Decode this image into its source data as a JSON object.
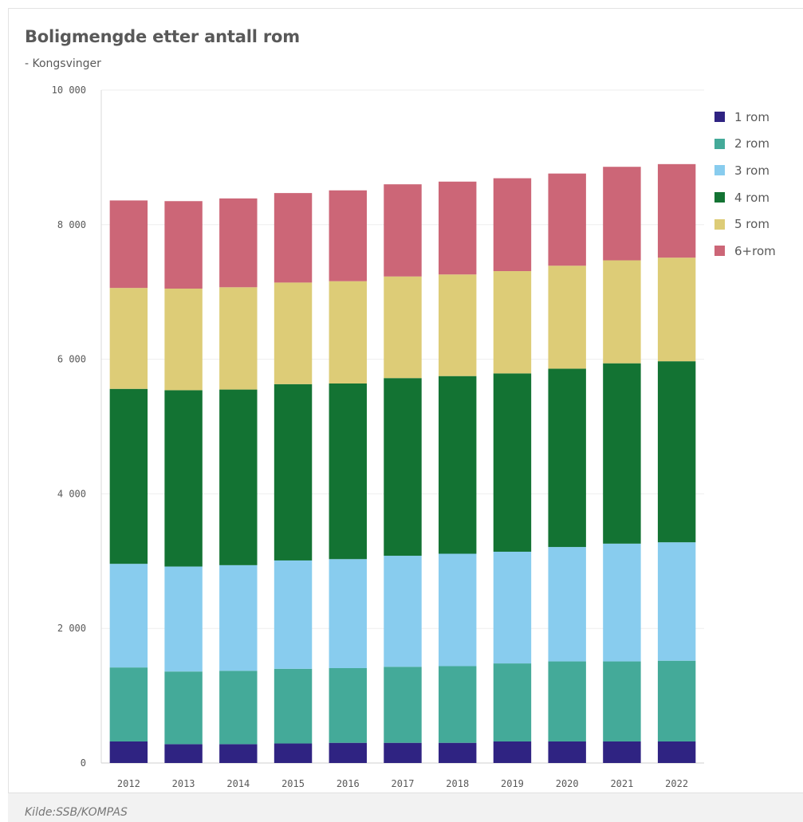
{
  "title": "Boligmengde etter antall rom",
  "subtitle": "- Kongsvinger",
  "footer": "Kilde:SSB/KOMPAS",
  "chart_data": {
    "type": "bar",
    "stacked": true,
    "categories": [
      "2012",
      "2013",
      "2014",
      "2015",
      "2016",
      "2017",
      "2018",
      "2019",
      "2020",
      "2021",
      "2022"
    ],
    "ylim": [
      0,
      10000
    ],
    "yticks": [
      0,
      2000,
      4000,
      6000,
      8000,
      10000
    ],
    "ytick_labels": [
      "0",
      "2 000",
      "4 000",
      "6 000",
      "8 000",
      "10 000"
    ],
    "legend_position": "right",
    "series": [
      {
        "name": "1 rom",
        "color": "#2f2382",
        "values": [
          320,
          280,
          280,
          290,
          300,
          300,
          300,
          320,
          320,
          320,
          320
        ]
      },
      {
        "name": "2 rom",
        "color": "#44aa99",
        "values": [
          1100,
          1080,
          1090,
          1110,
          1110,
          1130,
          1140,
          1160,
          1190,
          1190,
          1200
        ]
      },
      {
        "name": "3 rom",
        "color": "#88ccee",
        "values": [
          1540,
          1560,
          1570,
          1610,
          1620,
          1650,
          1670,
          1660,
          1700,
          1750,
          1760
        ]
      },
      {
        "name": "4 rom",
        "color": "#137333",
        "values": [
          2600,
          2620,
          2610,
          2620,
          2610,
          2640,
          2640,
          2650,
          2650,
          2680,
          2690
        ]
      },
      {
        "name": "5 rom",
        "color": "#ddcc77",
        "values": [
          1500,
          1510,
          1520,
          1510,
          1520,
          1510,
          1510,
          1520,
          1530,
          1530,
          1540
        ]
      },
      {
        "name": "6+rom",
        "color": "#cc6677",
        "values": [
          1300,
          1300,
          1320,
          1330,
          1350,
          1370,
          1380,
          1380,
          1370,
          1390,
          1390
        ]
      }
    ]
  }
}
